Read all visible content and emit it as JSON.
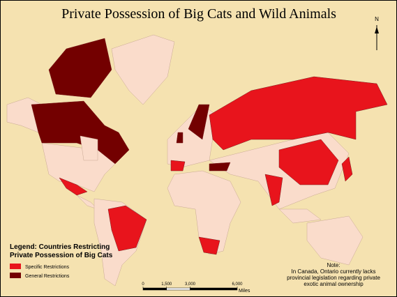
{
  "title": "Private Possession of Big Cats and Wild Animals",
  "north": "N",
  "legend": {
    "title_lines": [
      "Legend: Countries Restricting",
      "Private Possession of Big Cats"
    ],
    "entries": [
      {
        "label": "Specific Restrictions",
        "color": "#e8141c"
      },
      {
        "label": "General Restrictions",
        "color": "#730000"
      }
    ]
  },
  "note": [
    "Note:",
    "In Canada, Ontario currently lacks",
    "provincial legislation regarding private",
    "exotic animal ownership"
  ],
  "scale_bar": {
    "ticks": [
      0,
      {
        "value": 1500,
        "label": "1,500"
      },
      {
        "value": 3000,
        "label": "3,000"
      },
      {
        "value": 6000,
        "label": "6,000"
      }
    ],
    "unit": "Miles"
  }
}
